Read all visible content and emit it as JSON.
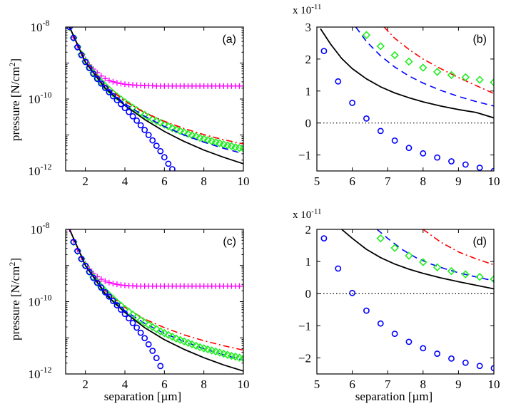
{
  "chart_data": [
    {
      "id": "a",
      "type": "line",
      "panel_label": "(a)",
      "yscale": "log",
      "ylabel": "pressure [N/cm^2]",
      "xlabel": "",
      "xlim": [
        1,
        10
      ],
      "ylim_exp": [
        -12,
        -8
      ],
      "xticks": [
        2,
        4,
        6,
        8,
        10
      ],
      "yticks_exp": [
        -12,
        -10,
        -8
      ],
      "series": [
        {
          "name": "magenta-plus",
          "color": "#ff00ff",
          "style": "marker",
          "marker": "plus",
          "x": [
            1.2,
            1.4,
            1.6,
            1.8,
            2.0,
            2.2,
            2.4,
            2.6,
            2.8,
            3.0,
            3.2,
            3.4,
            3.6,
            3.8,
            4.0,
            4.2,
            4.4,
            4.6,
            4.8,
            5.0,
            5.2,
            5.4,
            5.6,
            5.8,
            6.0,
            6.2,
            6.4,
            6.6,
            6.8,
            7.0,
            7.2,
            7.4,
            7.6,
            7.8,
            8.0,
            8.2,
            8.4,
            8.6,
            8.8,
            9.0,
            9.2,
            9.4,
            9.6,
            9.8,
            10.0
          ],
          "y_exp": [
            -8.0,
            -8.28,
            -8.52,
            -8.73,
            -8.9,
            -9.05,
            -9.17,
            -9.27,
            -9.36,
            -9.43,
            -9.48,
            -9.52,
            -9.55,
            -9.57,
            -9.59,
            -9.6,
            -9.61,
            -9.62,
            -9.62,
            -9.63,
            -9.63,
            -9.63,
            -9.64,
            -9.64,
            -9.64,
            -9.64,
            -9.64,
            -9.64,
            -9.64,
            -9.64,
            -9.64,
            -9.64,
            -9.64,
            -9.64,
            -9.64,
            -9.64,
            -9.64,
            -9.64,
            -9.64,
            -9.64,
            -9.64,
            -9.64,
            -9.64,
            -9.64,
            -9.64
          ]
        },
        {
          "name": "green-diamond",
          "color": "#22ee22",
          "style": "marker",
          "marker": "diamond",
          "x": [
            1.2,
            1.4,
            1.6,
            1.8,
            2.0,
            2.2,
            2.4,
            2.6,
            2.8,
            3.0,
            3.2,
            3.4,
            3.6,
            3.8,
            4.0,
            4.2,
            4.4,
            4.6,
            4.8,
            5.0,
            5.2,
            5.4,
            5.6,
            5.8,
            6.0,
            6.2,
            6.4,
            6.6,
            6.8,
            7.0,
            7.2,
            7.4,
            7.6,
            7.8,
            8.0,
            8.2,
            8.4,
            8.6,
            8.8,
            9.0,
            9.2,
            9.4,
            9.6,
            9.8,
            10.0
          ],
          "y_exp": [
            -8.0,
            -8.3,
            -8.55,
            -8.76,
            -8.95,
            -9.12,
            -9.27,
            -9.41,
            -9.53,
            -9.64,
            -9.74,
            -9.84,
            -9.93,
            -10.01,
            -10.09,
            -10.17,
            -10.24,
            -10.31,
            -10.38,
            -10.44,
            -10.5,
            -10.56,
            -10.61,
            -10.66,
            -10.71,
            -10.76,
            -10.81,
            -10.85,
            -10.89,
            -10.93,
            -10.97,
            -11.01,
            -11.04,
            -11.08,
            -11.11,
            -11.14,
            -11.17,
            -11.2,
            -11.23,
            -11.26,
            -11.29,
            -11.31,
            -11.34,
            -11.36,
            -11.38
          ]
        },
        {
          "name": "red-dashdot",
          "color": "#ff0000",
          "style": "dashdot",
          "x": [
            1.2,
            2,
            3,
            4,
            5,
            6,
            7,
            8,
            9,
            10
          ],
          "y_exp": [
            -8.0,
            -8.95,
            -9.62,
            -10.06,
            -10.38,
            -10.62,
            -10.82,
            -10.99,
            -11.13,
            -11.25
          ]
        },
        {
          "name": "blue-dashed",
          "color": "#0000ff",
          "style": "dashed",
          "x": [
            1.2,
            2,
            3,
            4,
            5,
            6,
            7,
            8,
            9,
            10
          ],
          "y_exp": [
            -8.0,
            -8.98,
            -9.68,
            -10.13,
            -10.48,
            -10.76,
            -11.0,
            -11.2,
            -11.37,
            -11.52
          ]
        },
        {
          "name": "black-solid",
          "color": "#000000",
          "style": "solid",
          "x": [
            1.2,
            2,
            3,
            4,
            5,
            6,
            7,
            8,
            9,
            10
          ],
          "y_exp": [
            -8.0,
            -8.98,
            -9.7,
            -10.18,
            -10.57,
            -10.9,
            -11.18,
            -11.42,
            -11.62,
            -11.8
          ]
        },
        {
          "name": "blue-circle",
          "color": "#0000ff",
          "style": "marker",
          "marker": "circle",
          "x": [
            1.2,
            1.4,
            1.6,
            1.8,
            2.0,
            2.2,
            2.4,
            2.6,
            2.8,
            3.0,
            3.2,
            3.4,
            3.6,
            3.8,
            4.0,
            4.2,
            4.4,
            4.6,
            4.8,
            5.0,
            5.2,
            5.4,
            5.6,
            5.8,
            6.0,
            6.2,
            6.4
          ],
          "y_exp": [
            -8.0,
            -8.3,
            -8.56,
            -8.78,
            -8.97,
            -9.14,
            -9.3,
            -9.44,
            -9.57,
            -9.69,
            -9.81,
            -9.92,
            -10.03,
            -10.14,
            -10.25,
            -10.36,
            -10.48,
            -10.6,
            -10.73,
            -10.86,
            -11.0,
            -11.15,
            -11.3,
            -11.45,
            -11.62,
            -11.8,
            -11.95
          ]
        }
      ]
    },
    {
      "id": "b",
      "type": "line",
      "panel_label": "(b)",
      "yscale": "linear",
      "exponent_label": "x 10",
      "exponent_power": "-11",
      "xlabel": "",
      "xlim": [
        5,
        10
      ],
      "ylim": [
        -1.5,
        3
      ],
      "xticks": [
        5,
        6,
        7,
        8,
        9,
        10
      ],
      "yticks": [
        -1,
        0,
        1,
        2,
        3
      ],
      "zero_line": true,
      "series": [
        {
          "name": "red-dashdot",
          "color": "#ff0000",
          "style": "dashdot",
          "x": [
            6.9,
            7.2,
            7.6,
            8,
            8.5,
            9,
            9.5,
            10
          ],
          "y": [
            3.0,
            2.65,
            2.3,
            2.0,
            1.7,
            1.42,
            1.17,
            0.92
          ]
        },
        {
          "name": "blue-dashed",
          "color": "#0000ff",
          "style": "dashed",
          "x": [
            6.1,
            6.4,
            6.8,
            7.2,
            7.6,
            8,
            8.5,
            9,
            9.5,
            10
          ],
          "y": [
            3.0,
            2.55,
            2.1,
            1.75,
            1.47,
            1.25,
            1.02,
            0.83,
            0.67,
            0.53
          ]
        },
        {
          "name": "black-solid",
          "color": "#000000",
          "style": "solid",
          "x": [
            5.1,
            5.4,
            5.7,
            6,
            6.4,
            6.8,
            7.2,
            7.6,
            8,
            8.5,
            9,
            9.5,
            10
          ],
          "y": [
            2.95,
            2.45,
            2.02,
            1.7,
            1.38,
            1.13,
            0.94,
            0.79,
            0.66,
            0.53,
            0.42,
            0.33,
            0.16
          ]
        },
        {
          "name": "green-diamond",
          "color": "#22ee22",
          "style": "marker",
          "marker": "diamond",
          "x": [
            6.4,
            6.8,
            7.2,
            7.6,
            8.0,
            8.4,
            8.8,
            9.2,
            9.6,
            10.0
          ],
          "y": [
            2.75,
            2.4,
            2.12,
            1.92,
            1.73,
            1.6,
            1.5,
            1.43,
            1.35,
            1.27
          ]
        },
        {
          "name": "blue-circle",
          "color": "#0000ff",
          "style": "marker",
          "marker": "circle",
          "x": [
            5.2,
            5.6,
            6.0,
            6.4,
            6.8,
            7.2,
            7.6,
            8.0,
            8.4,
            8.8,
            9.2,
            9.6,
            10.0
          ],
          "y": [
            2.25,
            1.3,
            0.63,
            0.14,
            -0.25,
            -0.55,
            -0.78,
            -0.95,
            -1.08,
            -1.2,
            -1.3,
            -1.4,
            -1.5
          ]
        }
      ]
    },
    {
      "id": "c",
      "type": "line",
      "panel_label": "(c)",
      "yscale": "log",
      "ylabel": "pressure [N/cm^2]",
      "xlabel": "separation [µm]",
      "xlim": [
        1,
        10
      ],
      "ylim_exp": [
        -12,
        -8
      ],
      "xticks": [
        2,
        4,
        6,
        8,
        10
      ],
      "yticks_exp": [
        -12,
        -10,
        -8
      ],
      "series": [
        {
          "name": "magenta-plus",
          "color": "#ff00ff",
          "style": "marker",
          "marker": "plus",
          "x": [
            1.2,
            1.4,
            1.6,
            1.8,
            2.0,
            2.2,
            2.4,
            2.6,
            2.8,
            3.0,
            3.2,
            3.4,
            3.6,
            3.8,
            4.0,
            4.2,
            4.4,
            4.6,
            4.8,
            5.0,
            5.2,
            5.4,
            5.6,
            5.8,
            6.0,
            6.2,
            6.4,
            6.6,
            6.8,
            7.0,
            7.2,
            7.4,
            7.6,
            7.8,
            8.0,
            8.2,
            8.4,
            8.6,
            8.8,
            9.0,
            9.2,
            9.4,
            9.6,
            9.8,
            10.0
          ],
          "y_exp": [
            -8.0,
            -8.3,
            -8.56,
            -8.77,
            -8.95,
            -9.1,
            -9.22,
            -9.31,
            -9.38,
            -9.43,
            -9.47,
            -9.5,
            -9.52,
            -9.54,
            -9.55,
            -9.56,
            -9.56,
            -9.57,
            -9.57,
            -9.57,
            -9.57,
            -9.57,
            -9.57,
            -9.57,
            -9.57,
            -9.57,
            -9.57,
            -9.57,
            -9.57,
            -9.57,
            -9.57,
            -9.57,
            -9.57,
            -9.57,
            -9.57,
            -9.57,
            -9.57,
            -9.57,
            -9.57,
            -9.57,
            -9.57,
            -9.57,
            -9.57,
            -9.57,
            -9.57
          ]
        },
        {
          "name": "red-dashdot",
          "color": "#ff0000",
          "style": "dashdot",
          "x": [
            1.2,
            2,
            3,
            4,
            5,
            6,
            7,
            8,
            9,
            10
          ],
          "y_exp": [
            -8.0,
            -8.98,
            -9.7,
            -10.16,
            -10.48,
            -10.72,
            -10.92,
            -11.08,
            -11.22,
            -11.34
          ]
        },
        {
          "name": "blue-dashed",
          "color": "#0000ff",
          "style": "dashed",
          "x": [
            1.2,
            2,
            3,
            4,
            5,
            6,
            7,
            8,
            9,
            10
          ],
          "y_exp": [
            -8.0,
            -9.0,
            -9.75,
            -10.25,
            -10.6,
            -10.88,
            -11.1,
            -11.3,
            -11.47,
            -11.62
          ]
        },
        {
          "name": "green-diamond",
          "color": "#22ee22",
          "style": "marker",
          "marker": "diamond",
          "x": [
            1.4,
            1.6,
            1.8,
            2.0,
            2.2,
            2.4,
            2.6,
            2.8,
            3.0,
            3.2,
            3.4,
            3.6,
            3.8,
            4.0,
            4.2,
            4.4,
            4.6,
            4.8,
            5.0,
            5.2,
            5.4,
            5.6,
            5.8,
            6.0,
            6.2,
            6.4,
            6.6,
            6.8,
            7.0,
            7.2,
            7.4,
            7.6,
            7.8,
            8.0,
            8.2,
            8.4,
            8.6,
            8.8,
            9.0,
            9.2,
            9.4,
            9.6,
            9.8,
            10.0
          ],
          "y_exp": [
            -8.35,
            -8.6,
            -8.81,
            -9.0,
            -9.17,
            -9.32,
            -9.46,
            -9.59,
            -9.71,
            -9.82,
            -9.92,
            -10.02,
            -10.11,
            -10.2,
            -10.28,
            -10.36,
            -10.44,
            -10.51,
            -10.58,
            -10.64,
            -10.7,
            -10.76,
            -10.82,
            -10.87,
            -10.92,
            -10.97,
            -11.02,
            -11.06,
            -11.1,
            -11.14,
            -11.18,
            -11.22,
            -11.26,
            -11.29,
            -11.32,
            -11.35,
            -11.38,
            -11.41,
            -11.44,
            -11.47,
            -11.5,
            -11.52,
            -11.55,
            -11.57
          ]
        },
        {
          "name": "black-solid",
          "color": "#000000",
          "style": "solid",
          "x": [
            1.2,
            2,
            3,
            4,
            5,
            6,
            7,
            8,
            9,
            10
          ],
          "y_exp": [
            -8.0,
            -9.0,
            -9.78,
            -10.3,
            -10.72,
            -11.05,
            -11.32,
            -11.55,
            -11.75,
            -11.92
          ]
        },
        {
          "name": "blue-circle",
          "color": "#0000ff",
          "style": "marker",
          "marker": "circle",
          "x": [
            1.4,
            1.6,
            1.8,
            2.0,
            2.2,
            2.4,
            2.6,
            2.8,
            3.0,
            3.2,
            3.4,
            3.6,
            3.8,
            4.0,
            4.2,
            4.4,
            4.6,
            4.8,
            5.0,
            5.2,
            5.4,
            5.6,
            5.8
          ],
          "y_exp": [
            -8.35,
            -8.6,
            -8.82,
            -9.01,
            -9.18,
            -9.34,
            -9.48,
            -9.61,
            -9.74,
            -9.86,
            -9.98,
            -10.1,
            -10.22,
            -10.34,
            -10.46,
            -10.59,
            -10.72,
            -10.86,
            -11.01,
            -11.18,
            -11.36,
            -11.56,
            -11.78
          ]
        }
      ]
    },
    {
      "id": "d",
      "type": "line",
      "panel_label": "(d)",
      "yscale": "linear",
      "exponent_label": "x 10",
      "exponent_power": "-11",
      "xlabel": "separation [µm]",
      "xlim": [
        5,
        10
      ],
      "ylim": [
        -2.5,
        2
      ],
      "xticks": [
        5,
        6,
        7,
        8,
        9,
        10
      ],
      "yticks": [
        -2,
        -1,
        0,
        1,
        2
      ],
      "zero_line": true,
      "series": [
        {
          "name": "red-dashdot",
          "color": "#ff0000",
          "style": "dashdot",
          "x": [
            8.0,
            8.5,
            9,
            9.5,
            10
          ],
          "y": [
            2.0,
            1.6,
            1.3,
            1.08,
            0.9
          ]
        },
        {
          "name": "blue-dashed",
          "color": "#0000ff",
          "style": "dashed",
          "x": [
            6.7,
            7,
            7.4,
            7.8,
            8.2,
            8.6,
            9,
            9.5,
            10
          ],
          "y": [
            2.0,
            1.72,
            1.38,
            1.12,
            0.93,
            0.78,
            0.65,
            0.52,
            0.4
          ]
        },
        {
          "name": "black-solid",
          "color": "#000000",
          "style": "solid",
          "x": [
            5.7,
            6,
            6.4,
            6.8,
            7.2,
            7.6,
            8,
            8.5,
            9,
            9.5,
            10
          ],
          "y": [
            2.0,
            1.72,
            1.38,
            1.12,
            0.92,
            0.76,
            0.63,
            0.49,
            0.37,
            0.26,
            0.15
          ]
        },
        {
          "name": "green-diamond",
          "color": "#22ee22",
          "style": "marker",
          "marker": "diamond",
          "x": [
            6.8,
            7.2,
            7.6,
            8.0,
            8.4,
            8.8,
            9.2,
            9.6,
            10.0
          ],
          "y": [
            1.72,
            1.42,
            1.18,
            0.98,
            0.82,
            0.7,
            0.6,
            0.52,
            0.45
          ]
        },
        {
          "name": "blue-circle",
          "color": "#0000ff",
          "style": "marker",
          "marker": "circle",
          "x": [
            5.2,
            5.6,
            6.0,
            6.4,
            6.8,
            7.2,
            7.6,
            8.0,
            8.4,
            8.8,
            9.2,
            9.6,
            10.0
          ],
          "y": [
            1.72,
            0.78,
            0.02,
            -0.53,
            -0.93,
            -1.25,
            -1.5,
            -1.7,
            -1.87,
            -2.02,
            -2.15,
            -2.25,
            -2.32
          ]
        }
      ]
    }
  ]
}
